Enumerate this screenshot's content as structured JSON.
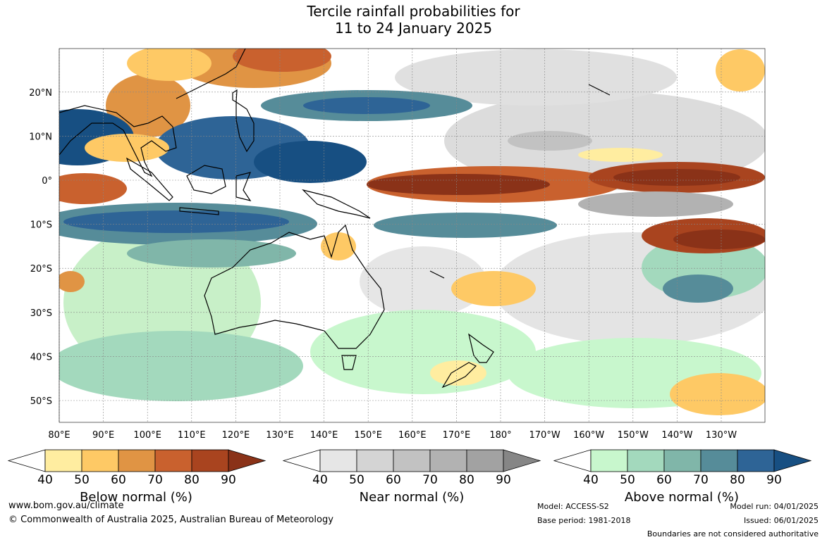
{
  "title": {
    "line1": "Tercile rainfall probabilities for",
    "line2": "11 to 24 January 2025"
  },
  "map": {
    "lat_labels": [
      "20°N",
      "10°N",
      "0°",
      "10°S",
      "20°S",
      "30°S",
      "40°S",
      "50°S"
    ],
    "lon_labels": [
      "80°E",
      "90°E",
      "100°E",
      "110°E",
      "120°E",
      "130°E",
      "140°E",
      "150°E",
      "160°E",
      "170°E",
      "180°",
      "170°W",
      "160°W",
      "150°W",
      "140°W",
      "130°W"
    ]
  },
  "colorbars": {
    "below": {
      "title": "Below normal (%)",
      "ticks": [
        "40",
        "50",
        "60",
        "70",
        "80",
        "90"
      ],
      "colors": [
        "#ffeda0",
        "#fec965",
        "#e09444",
        "#c9612e",
        "#a9441f",
        "#8a3218"
      ]
    },
    "near": {
      "title": "Near normal (%)",
      "ticks": [
        "40",
        "50",
        "60",
        "70",
        "80",
        "90"
      ],
      "colors": [
        "#e6e6e6",
        "#d4d4d4",
        "#c2c2c2",
        "#b2b2b2",
        "#a2a2a2",
        "#868686"
      ]
    },
    "above": {
      "title": "Above normal (%)",
      "ticks": [
        "40",
        "50",
        "60",
        "70",
        "80",
        "90"
      ],
      "colors": [
        "#c8f7cd",
        "#a3d9bd",
        "#80b6a9",
        "#568c99",
        "#2e6496",
        "#174f82"
      ]
    }
  },
  "footer": {
    "website": "www.bom.gov.au/climate",
    "copyright": "© Commonwealth of Australia 2025, Australian Bureau of Meteorology",
    "model": "Model: ACCESS-S2",
    "base_period": "Base period: 1981-2018",
    "model_run": "Model run: 04/01/2025",
    "issued": "Issued: 06/01/2025",
    "disclaimer": "Boundaries are not considered authoritative"
  }
}
